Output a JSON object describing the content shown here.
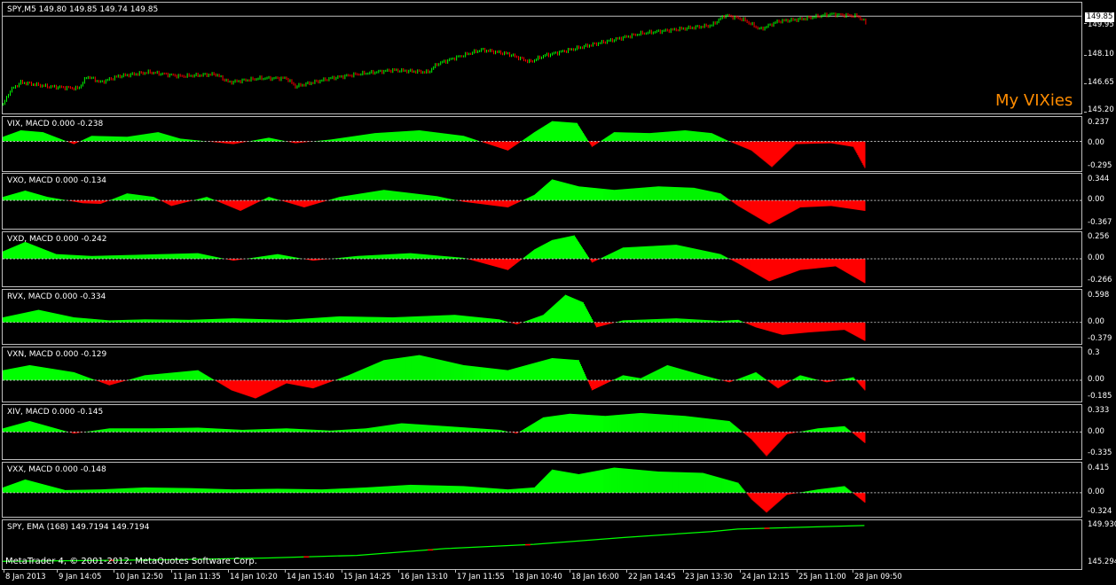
{
  "main": {
    "title": "SPY,M5  149.80 149.85 149.74 149.85",
    "scale": [
      "149.95",
      "148.10",
      "146.65",
      "145.20"
    ],
    "price_tag": "149.85",
    "brand": "My VIXies"
  },
  "indicators": [
    {
      "title": "VIX, MACD 0.000 -0.238",
      "scale": [
        "0.237",
        "0.00",
        "-0.295"
      ]
    },
    {
      "title": "VXO, MACD 0.000 -0.134",
      "scale": [
        "0.344",
        "0.00",
        "-0.367"
      ]
    },
    {
      "title": "VXD, MACD 0.000 -0.242",
      "scale": [
        "0.256",
        "0.00",
        "-0.266"
      ]
    },
    {
      "title": "RVX, MACD 0.000 -0.334",
      "scale": [
        "0.598",
        "0.00",
        "-0.379"
      ]
    },
    {
      "title": "VXN, MACD 0.000 -0.129",
      "scale": [
        "0.3",
        "0.00",
        "-0.185"
      ]
    },
    {
      "title": "XIV, MACD 0.000 -0.145",
      "scale": [
        "0.333",
        "0.00",
        "-0.335"
      ]
    },
    {
      "title": "VXX, MACD 0.000 -0.148",
      "scale": [
        "0.415",
        "0.00",
        "-0.324"
      ]
    }
  ],
  "ema": {
    "title": "SPY, EMA (168) 149.7194 149.7194",
    "scale": [
      "149.930",
      "145.294"
    ]
  },
  "footer": "MetaTrader 4, © 2001-2012, MetaQuotes Software Corp.",
  "time_axis": [
    "8 Jan 2013",
    "9 Jan 14:05",
    "10 Jan 12:50",
    "11 Jan 11:35",
    "14 Jan 10:20",
    "14 Jan 15:40",
    "15 Jan 14:25",
    "16 Jan 13:10",
    "17 Jan 11:55",
    "18 Jan 10:40",
    "18 Jan 16:00",
    "22 Jan 14:45",
    "23 Jan 13:30",
    "24 Jan 12:15",
    "25 Jan 11:00",
    "28 Jan 09:50"
  ],
  "colors": {
    "positive": "#00ff00",
    "negative": "#ff0000",
    "bull": "#00ff00",
    "bear": "#ff0000",
    "brand": "#ff8c00"
  },
  "chart_data": {
    "type": "line",
    "title": "SPY,M5",
    "price_range": [
      145.2,
      150.0
    ],
    "price_path": [
      [
        0,
        145.5
      ],
      [
        8,
        146.2
      ],
      [
        20,
        146.6
      ],
      [
        50,
        146.4
      ],
      [
        85,
        146.3
      ],
      [
        95,
        146.9
      ],
      [
        110,
        146.6
      ],
      [
        130,
        146.9
      ],
      [
        165,
        147.1
      ],
      [
        200,
        146.9
      ],
      [
        240,
        147.0
      ],
      [
        255,
        146.6
      ],
      [
        290,
        146.8
      ],
      [
        320,
        146.8
      ],
      [
        330,
        146.4
      ],
      [
        370,
        146.8
      ],
      [
        400,
        147.0
      ],
      [
        440,
        147.2
      ],
      [
        480,
        147.1
      ],
      [
        490,
        147.5
      ],
      [
        510,
        147.8
      ],
      [
        540,
        148.2
      ],
      [
        570,
        148.0
      ],
      [
        595,
        147.6
      ],
      [
        610,
        147.9
      ],
      [
        640,
        148.2
      ],
      [
        680,
        148.6
      ],
      [
        720,
        149.0
      ],
      [
        760,
        149.2
      ],
      [
        800,
        149.4
      ],
      [
        815,
        149.9
      ],
      [
        835,
        149.7
      ],
      [
        855,
        149.2
      ],
      [
        875,
        149.6
      ],
      [
        900,
        149.7
      ],
      [
        935,
        149.95
      ],
      [
        965,
        149.85
      ],
      [
        975,
        149.5
      ]
    ],
    "histograms": [
      {
        "name": "VIX",
        "range": [
          -0.295,
          0.237
        ],
        "points": [
          [
            0,
            0.05
          ],
          [
            20,
            0.12
          ],
          [
            45,
            0.1
          ],
          [
            80,
            -0.03
          ],
          [
            100,
            0.06
          ],
          [
            140,
            0.05
          ],
          [
            175,
            0.1
          ],
          [
            200,
            0.03
          ],
          [
            260,
            -0.03
          ],
          [
            300,
            0.04
          ],
          [
            330,
            -0.02
          ],
          [
            370,
            0.02
          ],
          [
            420,
            0.09
          ],
          [
            470,
            0.12
          ],
          [
            520,
            0.06
          ],
          [
            570,
            -0.1
          ],
          [
            600,
            0.1
          ],
          [
            620,
            0.22
          ],
          [
            648,
            0.2
          ],
          [
            665,
            -0.06
          ],
          [
            690,
            0.1
          ],
          [
            730,
            0.09
          ],
          [
            770,
            0.12
          ],
          [
            800,
            0.09
          ],
          [
            820,
            0.0
          ],
          [
            845,
            -0.1
          ],
          [
            868,
            -0.28
          ],
          [
            895,
            -0.03
          ],
          [
            935,
            -0.02
          ],
          [
            960,
            -0.06
          ],
          [
            973,
            -0.29
          ]
        ]
      },
      {
        "name": "VXO",
        "range": [
          -0.367,
          0.344
        ],
        "points": [
          [
            0,
            0.05
          ],
          [
            25,
            0.14
          ],
          [
            50,
            0.05
          ],
          [
            90,
            -0.04
          ],
          [
            110,
            -0.05
          ],
          [
            140,
            0.1
          ],
          [
            170,
            0.05
          ],
          [
            190,
            -0.08
          ],
          [
            230,
            0.05
          ],
          [
            268,
            -0.15
          ],
          [
            300,
            0.05
          ],
          [
            340,
            -0.1
          ],
          [
            380,
            0.05
          ],
          [
            430,
            0.15
          ],
          [
            490,
            0.06
          ],
          [
            520,
            -0.02
          ],
          [
            570,
            -0.1
          ],
          [
            600,
            0.08
          ],
          [
            620,
            0.3
          ],
          [
            650,
            0.2
          ],
          [
            690,
            0.15
          ],
          [
            740,
            0.2
          ],
          [
            780,
            0.18
          ],
          [
            810,
            0.1
          ],
          [
            830,
            -0.08
          ],
          [
            865,
            -0.34
          ],
          [
            900,
            -0.1
          ],
          [
            935,
            -0.08
          ],
          [
            973,
            -0.15
          ]
        ]
      },
      {
        "name": "VXD",
        "range": [
          -0.266,
          0.256
        ],
        "points": [
          [
            0,
            0.08
          ],
          [
            25,
            0.18
          ],
          [
            60,
            0.05
          ],
          [
            100,
            0.03
          ],
          [
            140,
            0.04
          ],
          [
            180,
            0.05
          ],
          [
            220,
            0.06
          ],
          [
            260,
            -0.02
          ],
          [
            310,
            0.05
          ],
          [
            350,
            -0.02
          ],
          [
            400,
            0.03
          ],
          [
            460,
            0.06
          ],
          [
            520,
            0.01
          ],
          [
            570,
            -0.12
          ],
          [
            600,
            0.1
          ],
          [
            620,
            0.2
          ],
          [
            645,
            0.25
          ],
          [
            665,
            -0.04
          ],
          [
            700,
            0.12
          ],
          [
            760,
            0.15
          ],
          [
            810,
            0.05
          ],
          [
            830,
            -0.05
          ],
          [
            865,
            -0.24
          ],
          [
            900,
            -0.12
          ],
          [
            940,
            -0.08
          ],
          [
            973,
            -0.26
          ]
        ]
      },
      {
        "name": "RVX",
        "range": [
          -0.379,
          0.598
        ],
        "points": [
          [
            0,
            0.1
          ],
          [
            40,
            0.25
          ],
          [
            80,
            0.1
          ],
          [
            120,
            0.04
          ],
          [
            160,
            0.06
          ],
          [
            210,
            0.05
          ],
          [
            260,
            0.08
          ],
          [
            320,
            0.05
          ],
          [
            380,
            0.12
          ],
          [
            440,
            0.1
          ],
          [
            510,
            0.15
          ],
          [
            560,
            0.06
          ],
          [
            580,
            -0.04
          ],
          [
            610,
            0.15
          ],
          [
            635,
            0.55
          ],
          [
            655,
            0.4
          ],
          [
            670,
            -0.1
          ],
          [
            700,
            0.04
          ],
          [
            760,
            0.08
          ],
          [
            810,
            0.03
          ],
          [
            830,
            0.05
          ],
          [
            850,
            -0.1
          ],
          [
            880,
            -0.25
          ],
          [
            910,
            -0.2
          ],
          [
            950,
            -0.15
          ],
          [
            973,
            -0.37
          ]
        ]
      },
      {
        "name": "VXN",
        "range": [
          -0.185,
          0.3
        ],
        "points": [
          [
            0,
            0.1
          ],
          [
            30,
            0.15
          ],
          [
            80,
            0.08
          ],
          [
            120,
            -0.05
          ],
          [
            160,
            0.05
          ],
          [
            220,
            0.1
          ],
          [
            258,
            -0.1
          ],
          [
            285,
            -0.18
          ],
          [
            320,
            -0.03
          ],
          [
            350,
            -0.08
          ],
          [
            390,
            0.05
          ],
          [
            430,
            0.2
          ],
          [
            470,
            0.25
          ],
          [
            520,
            0.15
          ],
          [
            570,
            0.1
          ],
          [
            620,
            0.22
          ],
          [
            650,
            0.2
          ],
          [
            665,
            -0.1
          ],
          [
            700,
            0.05
          ],
          [
            720,
            0.02
          ],
          [
            750,
            0.15
          ],
          [
            790,
            0.05
          ],
          [
            820,
            -0.02
          ],
          [
            850,
            0.08
          ],
          [
            875,
            -0.08
          ],
          [
            900,
            0.05
          ],
          [
            930,
            -0.02
          ],
          [
            960,
            0.03
          ],
          [
            973,
            -0.1
          ]
        ]
      },
      {
        "name": "XIV",
        "range": [
          -0.335,
          0.333
        ],
        "points": [
          [
            0,
            0.05
          ],
          [
            30,
            0.15
          ],
          [
            80,
            -0.02
          ],
          [
            120,
            0.05
          ],
          [
            170,
            0.05
          ],
          [
            220,
            0.06
          ],
          [
            270,
            0.03
          ],
          [
            320,
            0.05
          ],
          [
            370,
            0.02
          ],
          [
            410,
            0.05
          ],
          [
            450,
            0.12
          ],
          [
            500,
            0.08
          ],
          [
            560,
            0.03
          ],
          [
            580,
            -0.02
          ],
          [
            610,
            0.2
          ],
          [
            640,
            0.25
          ],
          [
            680,
            0.22
          ],
          [
            720,
            0.26
          ],
          [
            770,
            0.22
          ],
          [
            820,
            0.15
          ],
          [
            845,
            -0.1
          ],
          [
            862,
            -0.33
          ],
          [
            885,
            -0.03
          ],
          [
            920,
            0.05
          ],
          [
            950,
            0.08
          ],
          [
            973,
            -0.15
          ]
        ]
      },
      {
        "name": "VXX",
        "range": [
          -0.324,
          0.415
        ],
        "points": [
          [
            0,
            0.08
          ],
          [
            25,
            0.2
          ],
          [
            70,
            0.04
          ],
          [
            110,
            0.05
          ],
          [
            160,
            0.08
          ],
          [
            210,
            0.07
          ],
          [
            260,
            0.05
          ],
          [
            310,
            0.06
          ],
          [
            360,
            0.05
          ],
          [
            410,
            0.08
          ],
          [
            460,
            0.12
          ],
          [
            520,
            0.1
          ],
          [
            570,
            0.05
          ],
          [
            600,
            0.08
          ],
          [
            620,
            0.35
          ],
          [
            650,
            0.28
          ],
          [
            690,
            0.38
          ],
          [
            740,
            0.32
          ],
          [
            790,
            0.3
          ],
          [
            830,
            0.15
          ],
          [
            845,
            -0.1
          ],
          [
            862,
            -0.3
          ],
          [
            885,
            -0.03
          ],
          [
            920,
            0.05
          ],
          [
            950,
            0.1
          ],
          [
            973,
            -0.15
          ]
        ]
      }
    ],
    "ema_path": [
      [
        0,
        145.5
      ],
      [
        200,
        145.7
      ],
      [
        300,
        145.9
      ],
      [
        400,
        146.2
      ],
      [
        500,
        147.0
      ],
      [
        600,
        147.5
      ],
      [
        700,
        148.3
      ],
      [
        800,
        149.0
      ],
      [
        830,
        149.3
      ],
      [
        973,
        149.72
      ]
    ],
    "ema_range": [
      145.294,
      149.93
    ]
  }
}
